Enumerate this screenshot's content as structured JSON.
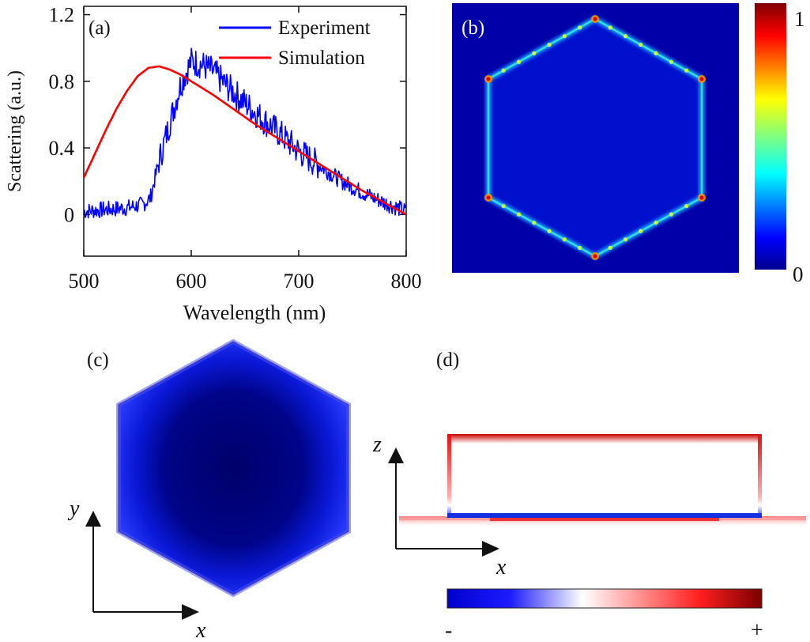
{
  "figure": {
    "panels": {
      "a": "(a)",
      "b": "(b)",
      "c": "(c)",
      "d": "(d)"
    }
  },
  "chart_data": [
    {
      "panel": "(a)",
      "type": "line",
      "xlabel": "Wavelength (nm)",
      "ylabel": "Scattering (a.u.)",
      "xlim": [
        500,
        800
      ],
      "ylim": [
        -0.25,
        1.25
      ],
      "x_ticks": [
        500,
        600,
        700,
        800
      ],
      "y_ticks": [
        0,
        0.4,
        0.8,
        1.2
      ],
      "y_tick_labels": [
        "0",
        "0.4",
        "0.8",
        "1.2"
      ],
      "legend_position": "top-right",
      "series": [
        {
          "name": "Experiment",
          "color": "#0000ff",
          "noisy": true,
          "x": [
            500,
            520,
            540,
            555,
            562,
            570,
            580,
            590,
            600,
            610,
            620,
            635,
            650,
            665,
            680,
            700,
            720,
            740,
            760,
            780,
            800
          ],
          "y": [
            0.02,
            0.03,
            0.04,
            0.06,
            0.1,
            0.32,
            0.55,
            0.78,
            0.92,
            0.9,
            0.86,
            0.76,
            0.67,
            0.58,
            0.5,
            0.38,
            0.29,
            0.2,
            0.13,
            0.07,
            0.02
          ]
        },
        {
          "name": "Simulation",
          "color": "#ff0000",
          "x": [
            500,
            510,
            520,
            530,
            540,
            550,
            560,
            570,
            580,
            590,
            600,
            620,
            640,
            660,
            680,
            700,
            720,
            740,
            760,
            780,
            800
          ],
          "y": [
            0.22,
            0.36,
            0.5,
            0.63,
            0.74,
            0.83,
            0.88,
            0.89,
            0.87,
            0.84,
            0.8,
            0.72,
            0.63,
            0.54,
            0.46,
            0.38,
            0.3,
            0.22,
            0.14,
            0.07,
            0.0
          ]
        }
      ]
    },
    {
      "panel": "(b)",
      "type": "heatmap",
      "description": "Field intensity map of hexagonal nanoplate; hot edges and corners",
      "colorbar": {
        "min_label": "0",
        "max_label": "1",
        "colormap": "jet"
      }
    },
    {
      "panel": "(c)",
      "type": "heatmap",
      "axes": {
        "horizontal": "x",
        "vertical": "y"
      }
    },
    {
      "panel": "(d)",
      "type": "heatmap",
      "axes": {
        "horizontal": "x",
        "vertical": "z"
      },
      "colorbar": {
        "min_label": "-",
        "max_label": "+",
        "colormap": "blue-white-red"
      }
    }
  ]
}
